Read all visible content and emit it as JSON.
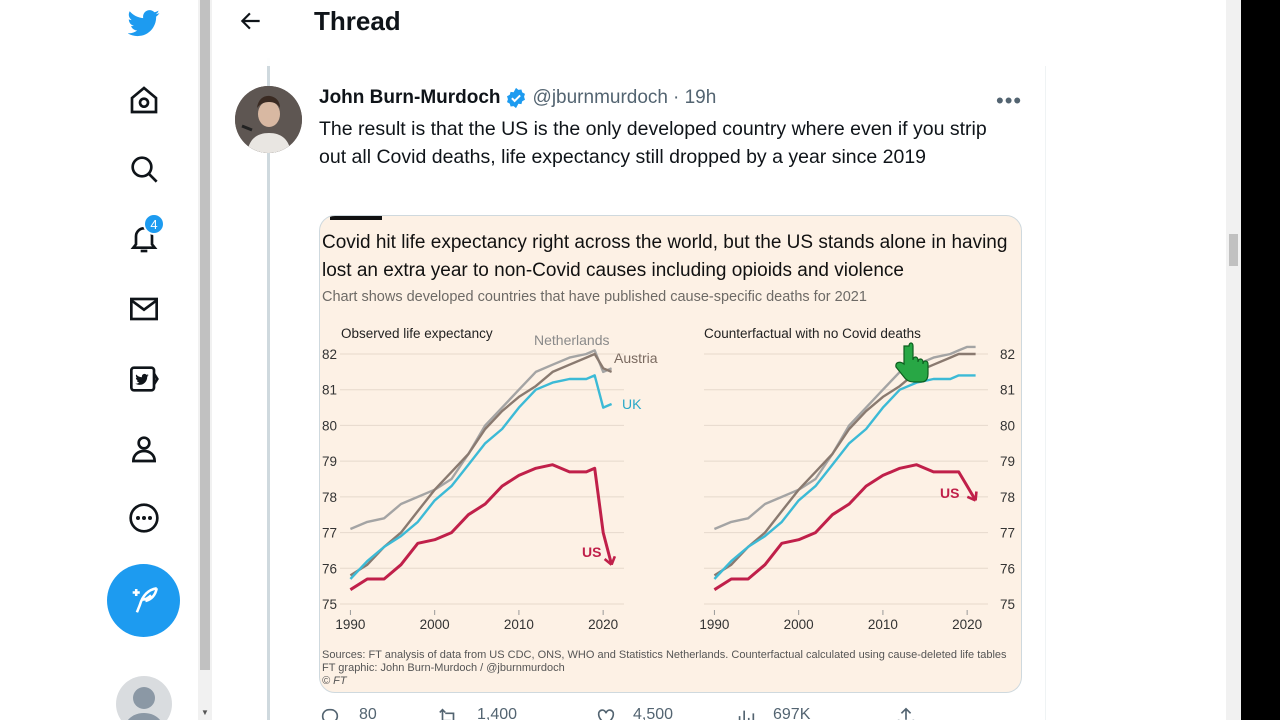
{
  "header": {
    "title": "Thread"
  },
  "nav": {
    "notification_count": "4"
  },
  "tweet": {
    "author_name": "John Burn-Murdoch",
    "handle": "@jburnmurdoch",
    "time": "· 19h",
    "text": "The result is that the US is the only developed country where even if you strip out all Covid deaths, life expectancy still dropped by a year since 2019",
    "actions": {
      "replies": "80",
      "retweets": "1,400",
      "likes": "4,500",
      "views": "697K"
    }
  },
  "chart_data": {
    "type": "line",
    "title": "Covid hit life expectancy right across the world, but the US stands alone in having lost an extra year to non-Covid causes including opioids and violence",
    "subtitle": "Chart shows developed countries that have published cause-specific deaths for 2021",
    "source": "Sources: FT analysis of data from US CDC, ONS, WHO and Statistics Netherlands. Counterfactual calculated using cause-deleted life tables",
    "credit": "FT graphic: John Burn-Murdoch / @jburnmurdoch",
    "brand": "© FT",
    "ylim": [
      75,
      82.5
    ],
    "yticks": [
      "82",
      "81",
      "80",
      "79",
      "78",
      "77",
      "76",
      "75"
    ],
    "xticks": [
      "1990",
      "2000",
      "2010",
      "2020"
    ],
    "panels": [
      {
        "title": "Observed life expectancy",
        "labels": {
          "Netherlands": "Netherlands",
          "Austria": "Austria",
          "UK": "UK",
          "US": "US"
        },
        "series": [
          {
            "name": "Netherlands",
            "color": "#a4a4a4",
            "x": [
              1990,
              1992,
              1994,
              1996,
              1998,
              2000,
              2002,
              2004,
              2006,
              2008,
              2010,
              2012,
              2014,
              2016,
              2018,
              2019,
              2020,
              2021
            ],
            "y": [
              77.1,
              77.3,
              77.4,
              77.8,
              78.0,
              78.2,
              78.5,
              79.2,
              80.0,
              80.5,
              81.0,
              81.5,
              81.7,
              81.9,
              82.0,
              82.1,
              81.5,
              81.6
            ]
          },
          {
            "name": "Austria",
            "color": "#8a7a70",
            "x": [
              1990,
              1992,
              1994,
              1996,
              1998,
              2000,
              2002,
              2004,
              2006,
              2008,
              2010,
              2012,
              2014,
              2016,
              2018,
              2019,
              2020,
              2021
            ],
            "y": [
              75.8,
              76.1,
              76.6,
              77.0,
              77.6,
              78.2,
              78.7,
              79.2,
              79.9,
              80.4,
              80.8,
              81.1,
              81.5,
              81.7,
              81.9,
              82.0,
              81.6,
              81.5
            ]
          },
          {
            "name": "UK",
            "color": "#3cbad6",
            "x": [
              1990,
              1992,
              1994,
              1996,
              1998,
              2000,
              2002,
              2004,
              2006,
              2008,
              2010,
              2012,
              2014,
              2016,
              2018,
              2019,
              2020,
              2021
            ],
            "y": [
              75.7,
              76.2,
              76.6,
              76.9,
              77.3,
              77.9,
              78.3,
              78.9,
              79.5,
              79.9,
              80.5,
              81.0,
              81.2,
              81.3,
              81.3,
              81.4,
              80.5,
              80.6
            ]
          },
          {
            "name": "US",
            "color": "#c0204a",
            "x": [
              1990,
              1992,
              1994,
              1996,
              1998,
              2000,
              2002,
              2004,
              2006,
              2008,
              2010,
              2012,
              2014,
              2016,
              2018,
              2019,
              2020,
              2021
            ],
            "y": [
              75.4,
              75.7,
              75.7,
              76.1,
              76.7,
              76.8,
              77.0,
              77.5,
              77.8,
              78.3,
              78.6,
              78.8,
              78.9,
              78.7,
              78.7,
              78.8,
              77.0,
              76.1
            ]
          }
        ]
      },
      {
        "title": "Counterfactual with no Covid deaths",
        "labels": {
          "US": "US"
        },
        "series": [
          {
            "name": "Netherlands",
            "color": "#a4a4a4",
            "x": [
              1990,
              1992,
              1994,
              1996,
              1998,
              2000,
              2002,
              2004,
              2006,
              2008,
              2010,
              2012,
              2014,
              2016,
              2018,
              2019,
              2020,
              2021
            ],
            "y": [
              77.1,
              77.3,
              77.4,
              77.8,
              78.0,
              78.2,
              78.5,
              79.2,
              80.0,
              80.5,
              81.0,
              81.5,
              81.7,
              81.9,
              82.0,
              82.1,
              82.2,
              82.2
            ]
          },
          {
            "name": "Austria",
            "color": "#8a7a70",
            "x": [
              1990,
              1992,
              1994,
              1996,
              1998,
              2000,
              2002,
              2004,
              2006,
              2008,
              2010,
              2012,
              2014,
              2016,
              2018,
              2019,
              2020,
              2021
            ],
            "y": [
              75.8,
              76.1,
              76.6,
              77.0,
              77.6,
              78.2,
              78.7,
              79.2,
              79.9,
              80.4,
              80.8,
              81.1,
              81.5,
              81.7,
              81.9,
              82.0,
              82.0,
              82.0
            ]
          },
          {
            "name": "UK",
            "color": "#3cbad6",
            "x": [
              1990,
              1992,
              1994,
              1996,
              1998,
              2000,
              2002,
              2004,
              2006,
              2008,
              2010,
              2012,
              2014,
              2016,
              2018,
              2019,
              2020,
              2021
            ],
            "y": [
              75.7,
              76.2,
              76.6,
              76.9,
              77.3,
              77.9,
              78.3,
              78.9,
              79.5,
              79.9,
              80.5,
              81.0,
              81.2,
              81.3,
              81.3,
              81.4,
              81.4,
              81.4
            ]
          },
          {
            "name": "US",
            "color": "#c0204a",
            "x": [
              1990,
              1992,
              1994,
              1996,
              1998,
              2000,
              2002,
              2004,
              2006,
              2008,
              2010,
              2012,
              2014,
              2016,
              2018,
              2019,
              2020,
              2021
            ],
            "y": [
              75.4,
              75.7,
              75.7,
              76.1,
              76.7,
              76.8,
              77.0,
              77.5,
              77.8,
              78.3,
              78.6,
              78.8,
              78.9,
              78.7,
              78.7,
              78.7,
              78.3,
              77.9
            ]
          }
        ]
      }
    ]
  }
}
